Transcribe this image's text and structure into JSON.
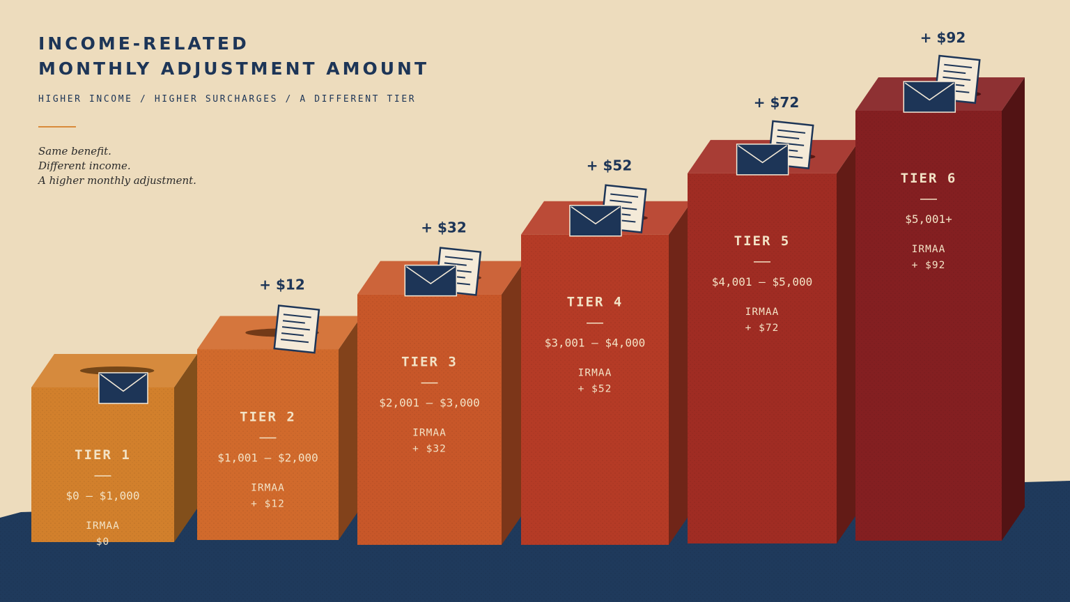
{
  "header": {
    "title_line1": "INCOME-RELATED",
    "title_line2": "MONTHLY ADJUSTMENT AMOUNT",
    "subtitle": "HIGHER INCOME  /  HIGHER SURCHARGES  /  A DIFFERENT TIER",
    "tagline": [
      "Same benefit.",
      "Different income.",
      "A higher monthly adjustment."
    ]
  },
  "chart_data": {
    "type": "bar",
    "title": "INCOME-RELATED MONTHLY ADJUSTMENT AMOUNT",
    "categories": [
      "TIER 1",
      "TIER 2",
      "TIER 3",
      "TIER 4",
      "TIER 5",
      "TIER 6"
    ],
    "ranges": [
      "$0 – $1,000",
      "$1,001 – $2,000",
      "$2,001 – $3,000",
      "$3,001 – $4,000",
      "$4,001 – $5,000",
      "$5,001+"
    ],
    "value_label": "IRMAA",
    "values": [
      0,
      12,
      32,
      52,
      72,
      92
    ],
    "value_texts": [
      "$0",
      "+ $12",
      "+ $32",
      "+ $52",
      "+ $72",
      "+ $92"
    ],
    "top_labels": [
      "",
      "+ $12",
      "+ $32",
      "+ $52",
      "+ $72",
      "+ $92"
    ],
    "colors": [
      "#d2802c",
      "#d16a2c",
      "#c85729",
      "#b53b26",
      "#a02c23",
      "#841f21"
    ],
    "grid": false,
    "legend": "none"
  },
  "colors": {
    "background": "#eddcbd",
    "ink": "#1d3557",
    "accent": "#d98a3a",
    "floor": "#1f3a5c"
  },
  "icons": [
    "envelope-icon",
    "document-icon"
  ]
}
